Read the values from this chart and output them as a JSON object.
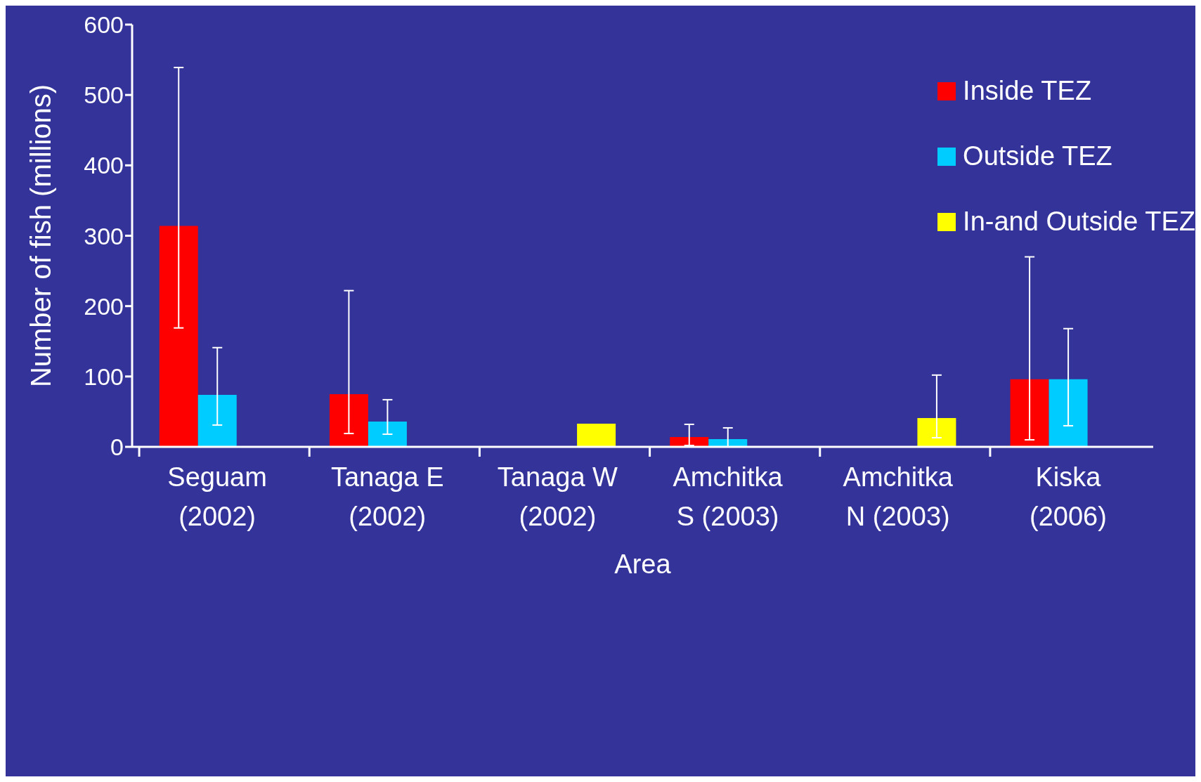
{
  "chart_data": {
    "type": "bar",
    "xlabel": "Area",
    "ylabel": "Number of fish (millions)",
    "categories": [
      "Seguam (2002)",
      "Tanaga E (2002)",
      "Tanaga W (2002)",
      "Amchitka S (2003)",
      "Amchitka N (2003)",
      "Kiska (2006)"
    ],
    "series": [
      {
        "name": "Inside TEZ",
        "color": "#ff0000",
        "values": [
          314,
          75,
          null,
          14,
          null,
          96
        ],
        "errors": [
          [
            169,
            539
          ],
          [
            19,
            222
          ],
          null,
          [
            2,
            32
          ],
          null,
          [
            10,
            270
          ]
        ]
      },
      {
        "name": "Outside TEZ",
        "color": "#00ccff",
        "values": [
          74,
          36,
          null,
          11,
          null,
          96
        ],
        "errors": [
          [
            31,
            141
          ],
          [
            18,
            67
          ],
          null,
          [
            0,
            27
          ],
          null,
          [
            30,
            168
          ]
        ]
      },
      {
        "name": "In-and Outside TEZ",
        "color": "#ffff00",
        "values": [
          null,
          null,
          33,
          null,
          41,
          null
        ],
        "errors": [
          null,
          null,
          null,
          null,
          [
            13,
            102
          ],
          null
        ]
      }
    ],
    "ylim": [
      0,
      600
    ],
    "yticks": [
      0,
      100,
      200,
      300,
      400,
      500,
      600
    ],
    "grid": false,
    "legend": "top right"
  }
}
